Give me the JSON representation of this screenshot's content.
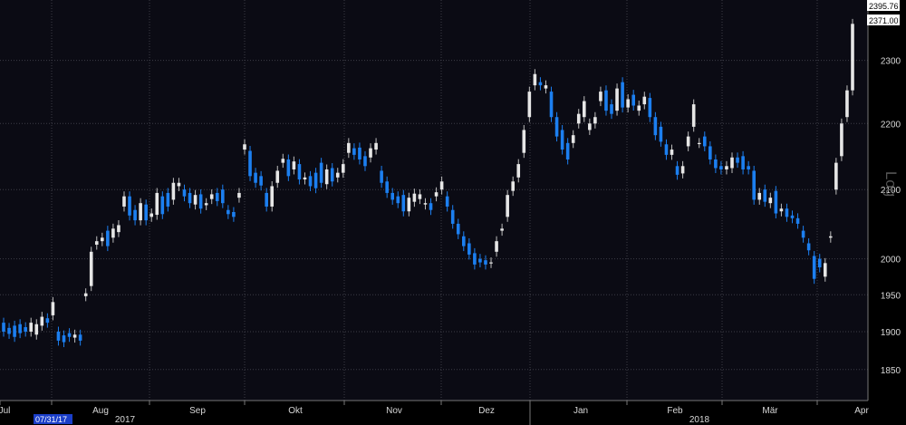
{
  "chart_data": {
    "type": "candlestick",
    "scale": "log",
    "ylim": [
      1810,
      2400
    ],
    "grid": true,
    "colors": {
      "background": "#0b0b14",
      "up": "#e6e6e6",
      "down": "#1c7ff0",
      "grid": "#3c3c46"
    },
    "y_ticks": [
      1850,
      1900,
      1950,
      2000,
      2100,
      2200,
      2300
    ],
    "x_months": [
      "Jul",
      "Aug",
      "Sep",
      "Okt",
      "Nov",
      "Dez",
      "Jan",
      "Feb",
      "Mär",
      "Apr"
    ],
    "years": [
      "2017",
      "2018"
    ],
    "start_date_label": "07/31/17",
    "last_price_tags": [
      "2395.76",
      "2371.00"
    ],
    "scale_label": "Log",
    "candles": [
      [
        1912,
        1900
      ],
      [
        1905,
        1897
      ],
      [
        1908,
        1893
      ],
      [
        1910,
        1898
      ],
      [
        1906,
        1900
      ],
      [
        1900,
        1912
      ],
      [
        1896,
        1910
      ],
      [
        1908,
        1920
      ],
      [
        1918,
        1912
      ],
      [
        1922,
        1940
      ],
      [
        1900,
        1888
      ],
      [
        1895,
        1886
      ],
      [
        1898,
        1893
      ],
      [
        1892,
        1896
      ],
      [
        1896,
        1888
      ],
      [
        1948,
        1952
      ],
      [
        1962,
        2010
      ],
      [
        2020,
        2025
      ],
      [
        2025,
        2030
      ],
      [
        2040,
        2018
      ],
      [
        2030,
        2043
      ],
      [
        2038,
        2048
      ],
      [
        2075,
        2090
      ],
      [
        2090,
        2062
      ],
      [
        2070,
        2055
      ],
      [
        2055,
        2080
      ],
      [
        2078,
        2055
      ],
      [
        2060,
        2065
      ],
      [
        2063,
        2095
      ],
      [
        2090,
        2064
      ],
      [
        2095,
        2075
      ],
      [
        2085,
        2110
      ],
      [
        2105,
        2110
      ],
      [
        2100,
        2090
      ],
      [
        2095,
        2080
      ],
      [
        2078,
        2092
      ],
      [
        2093,
        2072
      ],
      [
        2077,
        2080
      ],
      [
        2086,
        2093
      ],
      [
        2095,
        2083
      ],
      [
        2100,
        2080
      ],
      [
        2070,
        2064
      ],
      [
        2067,
        2060
      ],
      [
        2088,
        2095
      ],
      [
        2160,
        2168
      ],
      [
        2158,
        2120
      ],
      [
        2125,
        2110
      ],
      [
        2120,
        2106
      ],
      [
        2095,
        2075
      ],
      [
        2075,
        2105
      ],
      [
        2110,
        2128
      ],
      [
        2140,
        2146
      ],
      [
        2145,
        2120
      ],
      [
        2130,
        2142
      ],
      [
        2138,
        2115
      ],
      [
        2115,
        2118
      ],
      [
        2120,
        2105
      ],
      [
        2125,
        2102
      ],
      [
        2140,
        2110
      ],
      [
        2108,
        2130
      ],
      [
        2132,
        2112
      ],
      [
        2118,
        2125
      ],
      [
        2125,
        2138
      ],
      [
        2155,
        2170
      ],
      [
        2162,
        2152
      ],
      [
        2163,
        2145
      ],
      [
        2150,
        2135
      ],
      [
        2148,
        2162
      ],
      [
        2160,
        2170
      ],
      [
        2128,
        2110
      ],
      [
        2112,
        2095
      ],
      [
        2095,
        2085
      ],
      [
        2090,
        2080
      ],
      [
        2092,
        2068
      ],
      [
        2068,
        2088
      ],
      [
        2082,
        2094
      ],
      [
        2086,
        2093
      ],
      [
        2078,
        2080
      ],
      [
        2080,
        2070
      ],
      [
        2090,
        2096
      ],
      [
        2100,
        2112
      ],
      [
        2090,
        2075
      ],
      [
        2070,
        2050
      ],
      [
        2050,
        2035
      ],
      [
        2032,
        2018
      ],
      [
        2022,
        2006
      ],
      [
        2008,
        1992
      ],
      [
        2000,
        1995
      ],
      [
        1998,
        1992
      ],
      [
        1994,
        1995
      ],
      [
        2010,
        2025
      ],
      [
        2040,
        2043
      ],
      [
        2060,
        2092
      ],
      [
        2098,
        2112
      ],
      [
        2118,
        2138
      ],
      [
        2155,
        2190
      ],
      [
        2210,
        2250
      ],
      [
        2260,
        2278
      ],
      [
        2265,
        2260
      ],
      [
        2255,
        2260
      ],
      [
        2250,
        2210
      ],
      [
        2210,
        2180
      ],
      [
        2190,
        2160
      ],
      [
        2170,
        2145
      ],
      [
        2170,
        2182
      ],
      [
        2200,
        2215
      ],
      [
        2210,
        2235
      ],
      [
        2190,
        2200
      ],
      [
        2200,
        2210
      ],
      [
        2235,
        2250
      ],
      [
        2252,
        2220
      ],
      [
        2230,
        2215
      ],
      [
        2220,
        2255
      ],
      [
        2265,
        2225
      ],
      [
        2225,
        2238
      ],
      [
        2245,
        2228
      ],
      [
        2220,
        2228
      ],
      [
        2230,
        2242
      ],
      [
        2240,
        2210
      ],
      [
        2210,
        2182
      ],
      [
        2195,
        2172
      ],
      [
        2168,
        2152
      ],
      [
        2152,
        2160
      ],
      [
        2135,
        2122
      ],
      [
        2124,
        2135
      ],
      [
        2165,
        2180
      ],
      [
        2195,
        2230
      ],
      [
        2170,
        2170
      ],
      [
        2180,
        2165
      ],
      [
        2165,
        2145
      ],
      [
        2145,
        2132
      ],
      [
        2135,
        2130
      ],
      [
        2130,
        2135
      ],
      [
        2132,
        2148
      ],
      [
        2148,
        2140
      ],
      [
        2150,
        2130
      ],
      [
        2135,
        2130
      ],
      [
        2128,
        2085
      ],
      [
        2085,
        2095
      ],
      [
        2100,
        2082
      ],
      [
        2080,
        2088
      ],
      [
        2098,
        2065
      ],
      [
        2068,
        2072
      ],
      [
        2072,
        2060
      ],
      [
        2062,
        2058
      ],
      [
        2058,
        2050
      ],
      [
        2040,
        2030
      ],
      [
        2022,
        2012
      ],
      [
        2004,
        1972
      ],
      [
        2000,
        1988
      ],
      [
        1975,
        1994
      ],
      [
        2030,
        2032
      ],
      [
        2100,
        2140
      ],
      [
        2150,
        2200
      ],
      [
        2210,
        2252
      ],
      [
        2252,
        2360
      ]
    ]
  }
}
